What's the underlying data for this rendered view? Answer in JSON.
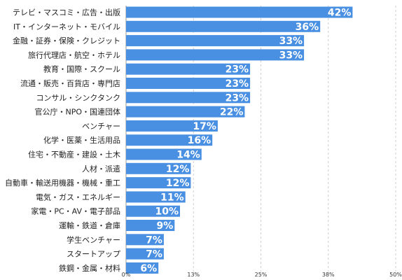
{
  "chart_data": {
    "type": "bar",
    "orientation": "horizontal",
    "categories": [
      "テレビ・マスコミ・広告・出版",
      "IT・インターネット・モバイル",
      "金融・証券・保険・クレジット",
      "旅行代理店・航空・ホテル",
      "教育・国際・スクール",
      "流通・販売・百貨店・専門店",
      "コンサル・シンクタンク",
      "官公庁・NPO・国連団体",
      "ベンチャー",
      "化学・医薬・生活用品",
      "住宅・不動産・建設・土木",
      "人材・派遣",
      "自動車・輸送用機器・機械・重工",
      "電気・ガス・エネルギー",
      "家電・PC・AV・電子部品",
      "運輸・鉄道・倉庫",
      "学生ベンチャー",
      "スタートアップ",
      "鉄鋼・金属・材料"
    ],
    "values": [
      42,
      36,
      33,
      33,
      23,
      23,
      23,
      22,
      17,
      16,
      14,
      12,
      12,
      11,
      10,
      9,
      7,
      7,
      6
    ],
    "value_labels": [
      "42%",
      "36%",
      "33%",
      "33%",
      "23%",
      "23%",
      "23%",
      "22%",
      "17%",
      "16%",
      "14%",
      "12%",
      "12%",
      "11%",
      "10%",
      "9%",
      "7%",
      "7%",
      "6%"
    ],
    "xticks": [
      0,
      12.5,
      25,
      37.5,
      50
    ],
    "xtick_labels": [
      "0%",
      "13%",
      "25%",
      "38%",
      "50%"
    ],
    "xlim": [
      0,
      50
    ],
    "grid": true,
    "bar_color": "#4a90e2",
    "title": "",
    "xlabel": "",
    "ylabel": ""
  }
}
